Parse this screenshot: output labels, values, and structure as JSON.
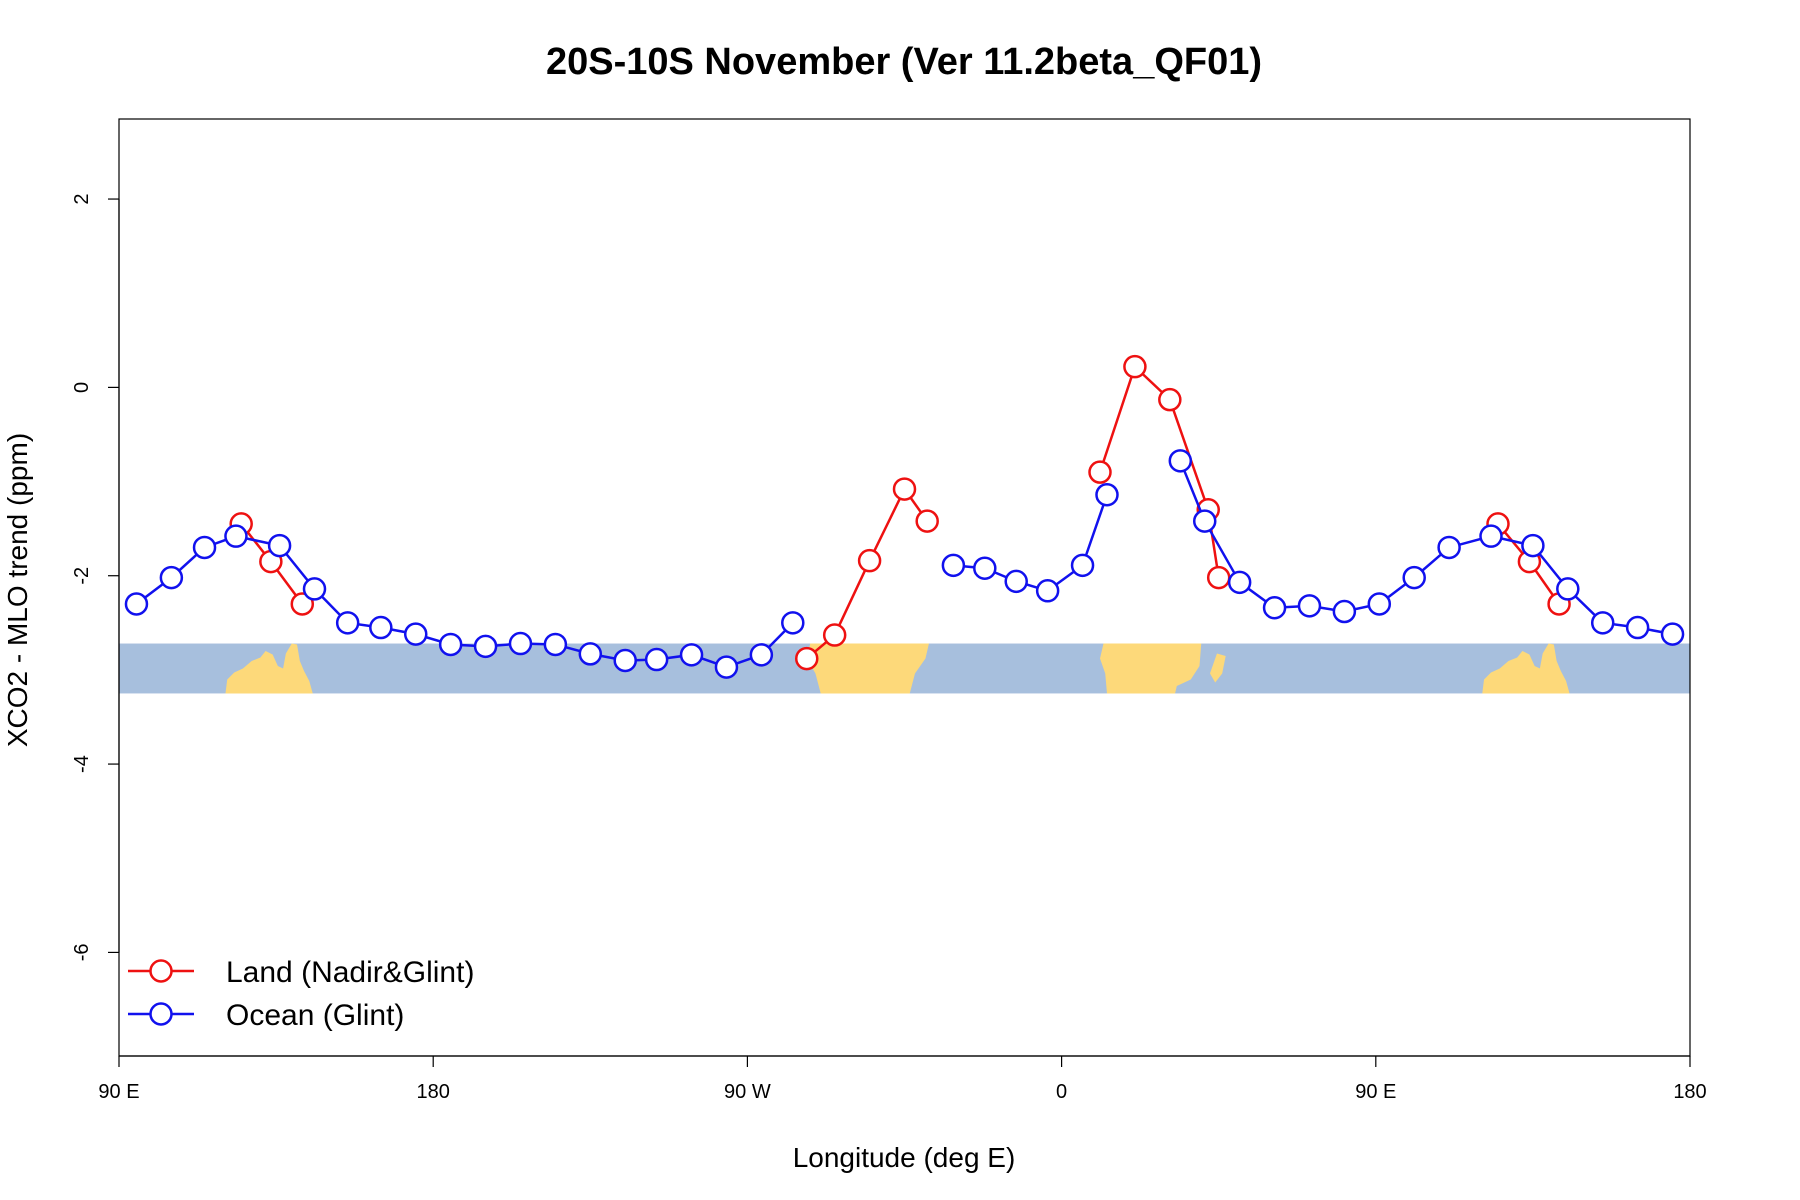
{
  "chart_data": {
    "type": "line",
    "title": "20S-10S November (Ver 11.2beta_QF01)",
    "xlabel": "Longitude (deg E)",
    "ylabel": "XCO2 - MLO trend (ppm)",
    "xlim": [
      90,
      540
    ],
    "ylim": [
      -7.1,
      2.85
    ],
    "x_ticks": [
      {
        "value": 90,
        "label": "90 E"
      },
      {
        "value": 180,
        "label": "180"
      },
      {
        "value": 270,
        "label": "90 W"
      },
      {
        "value": 360,
        "label": "0"
      },
      {
        "value": 450,
        "label": "90 E"
      },
      {
        "value": 540,
        "label": "180"
      }
    ],
    "y_ticks": [
      {
        "value": 2,
        "label": "2"
      },
      {
        "value": 0,
        "label": "0"
      },
      {
        "value": -2,
        "label": "-2"
      },
      {
        "value": -4,
        "label": "-4"
      },
      {
        "value": -6,
        "label": "-6"
      }
    ],
    "land_band": {
      "y_top": -2.72,
      "y_bottom": -3.25,
      "ocean_color": "#a7bfdd",
      "land_color": "#fdd97a"
    },
    "grid": false,
    "legend_position": "bottom-left",
    "series": [
      {
        "name": "Land (Nadir&Glint)",
        "color": "#ee1111",
        "segments": [
          [
            [
              125,
              -1.45
            ],
            [
              133.5,
              -1.85
            ],
            [
              142.5,
              -2.3
            ]
          ],
          [
            [
              287,
              -2.88
            ],
            [
              295,
              -2.63
            ],
            [
              305,
              -1.84
            ],
            [
              315,
              -1.08
            ],
            [
              321.5,
              -1.42
            ]
          ],
          [
            [
              371,
              -0.9
            ],
            [
              381,
              0.22
            ],
            [
              391,
              -0.13
            ],
            [
              402,
              -1.3
            ],
            [
              405,
              -2.02
            ]
          ],
          [
            [
              485,
              -1.45
            ],
            [
              494,
              -1.85
            ],
            [
              502.5,
              -2.3
            ]
          ]
        ]
      },
      {
        "name": "Ocean (Glint)",
        "color": "#1111ee",
        "segments": [
          [
            [
              95,
              -2.3
            ],
            [
              105,
              -2.02
            ],
            [
              114.5,
              -1.7
            ],
            [
              123.5,
              -1.58
            ],
            [
              136,
              -1.68
            ],
            [
              146,
              -2.14
            ],
            [
              155.5,
              -2.5
            ],
            [
              165,
              -2.55
            ],
            [
              175,
              -2.62
            ],
            [
              185,
              -2.73
            ],
            [
              195,
              -2.75
            ],
            [
              205,
              -2.72
            ],
            [
              215,
              -2.73
            ],
            [
              225,
              -2.83
            ],
            [
              235,
              -2.9
            ],
            [
              244,
              -2.89
            ],
            [
              254,
              -2.84
            ],
            [
              264,
              -2.97
            ],
            [
              274,
              -2.84
            ],
            [
              283,
              -2.5
            ]
          ],
          [
            [
              329,
              -1.89
            ],
            [
              338,
              -1.92
            ],
            [
              347,
              -2.06
            ],
            [
              356,
              -2.16
            ],
            [
              366,
              -1.89
            ],
            [
              373,
              -1.14
            ]
          ],
          [
            [
              394,
              -0.78
            ],
            [
              401,
              -1.42
            ],
            [
              411,
              -2.07
            ],
            [
              421,
              -2.34
            ],
            [
              431,
              -2.32
            ],
            [
              441,
              -2.38
            ],
            [
              451,
              -2.3
            ],
            [
              461,
              -2.02
            ],
            [
              471,
              -1.7
            ],
            [
              483,
              -1.58
            ],
            [
              495,
              -1.68
            ],
            [
              505,
              -2.14
            ],
            [
              515,
              -2.5
            ],
            [
              525,
              -2.55
            ],
            [
              535,
              -2.62
            ]
          ]
        ]
      }
    ]
  }
}
